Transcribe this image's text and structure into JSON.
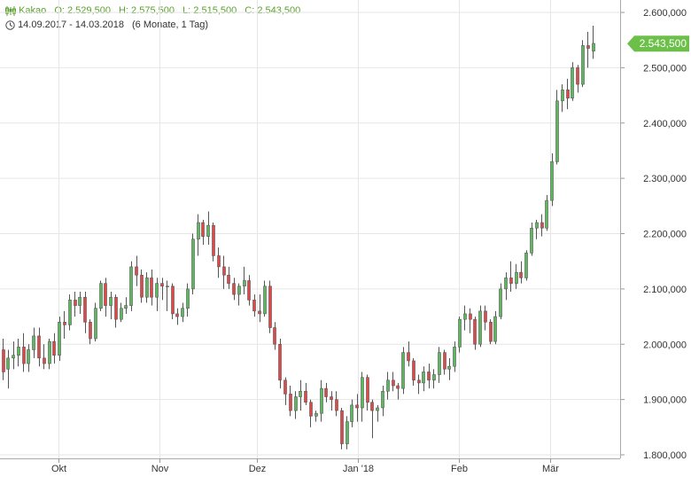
{
  "header": {
    "name": "Kakao",
    "open": "O: 2.529,500",
    "high": "H: 2.575,500",
    "low": "L: 2.515,500",
    "close": "C: 2.543,500",
    "range": "14.09.2017 - 14.03.2018",
    "period": "(6 Monate, 1 Tag)",
    "icon": "candlestick-icon",
    "clock_icon": "clock-icon"
  },
  "colors": {
    "up": "#5cb85c",
    "down": "#e04848",
    "wick": "#555555",
    "grid": "#e6e6e6",
    "label_bg": "#6cc04a",
    "header_text": "#5aa02c"
  },
  "chart_data": {
    "type": "candlestick",
    "y_ticks": [
      "1.800,000",
      "1.900,000",
      "2.000,000",
      "2.100,000",
      "2.200,000",
      "2.300,000",
      "2.400,000",
      "2.500,000",
      "2.600,000"
    ],
    "y_tick_values": [
      1800,
      1900,
      2000,
      2100,
      2200,
      2300,
      2400,
      2500,
      2600
    ],
    "ylim": [
      1775,
      2625
    ],
    "x_labels": [
      {
        "label": "Okt",
        "date": "2017-10-01"
      },
      {
        "label": "Nov",
        "date": "2017-11-01"
      },
      {
        "label": "Dez",
        "date": "2017-12-01"
      },
      {
        "label": "Jan '18",
        "date": "2018-01-01"
      },
      {
        "label": "Feb",
        "date": "2018-02-01"
      },
      {
        "label": "Mär",
        "date": "2018-03-01"
      }
    ],
    "last_value": 2543.5,
    "last_label": "2.543,500",
    "candles": [
      [
        1990,
        2010,
        1935,
        1950
      ],
      [
        1955,
        1990,
        1920,
        1975
      ],
      [
        1975,
        2005,
        1955,
        1980
      ],
      [
        1980,
        2010,
        1960,
        1995
      ],
      [
        1995,
        2020,
        1950,
        1965
      ],
      [
        1965,
        2000,
        1950,
        1990
      ],
      [
        1990,
        2030,
        1975,
        2015
      ],
      [
        2015,
        2030,
        1960,
        1975
      ],
      [
        1975,
        2000,
        1955,
        1965
      ],
      [
        1965,
        2010,
        1955,
        2005
      ],
      [
        2005,
        2020,
        1965,
        1980
      ],
      [
        1980,
        2050,
        1970,
        2040
      ],
      [
        2040,
        2060,
        2010,
        2035
      ],
      [
        2035,
        2090,
        2025,
        2080
      ],
      [
        2080,
        2095,
        2050,
        2070
      ],
      [
        2070,
        2095,
        2055,
        2085
      ],
      [
        2085,
        2095,
        2020,
        2040
      ],
      [
        2040,
        2045,
        2000,
        2010
      ],
      [
        2010,
        2075,
        2005,
        2065
      ],
      [
        2065,
        2115,
        2060,
        2110
      ],
      [
        2110,
        2120,
        2050,
        2070
      ],
      [
        2070,
        2095,
        2045,
        2085
      ],
      [
        2085,
        2090,
        2030,
        2045
      ],
      [
        2045,
        2075,
        2040,
        2065
      ],
      [
        2065,
        2085,
        2055,
        2070
      ],
      [
        2070,
        2150,
        2060,
        2140
      ],
      [
        2140,
        2160,
        2105,
        2125
      ],
      [
        2125,
        2135,
        2075,
        2085
      ],
      [
        2085,
        2130,
        2075,
        2120
      ],
      [
        2120,
        2135,
        2070,
        2085
      ],
      [
        2085,
        2120,
        2060,
        2110
      ],
      [
        2110,
        2120,
        2080,
        2105
      ],
      [
        2105,
        2115,
        2060,
        2105
      ],
      [
        2105,
        2110,
        2045,
        2055
      ],
      [
        2055,
        2065,
        2035,
        2050
      ],
      [
        2050,
        2075,
        2040,
        2065
      ],
      [
        2065,
        2110,
        2050,
        2100
      ],
      [
        2100,
        2200,
        2090,
        2190
      ],
      [
        2190,
        2235,
        2160,
        2220
      ],
      [
        2220,
        2225,
        2180,
        2195
      ],
      [
        2195,
        2240,
        2180,
        2215
      ],
      [
        2215,
        2220,
        2150,
        2160
      ],
      [
        2160,
        2175,
        2120,
        2140
      ],
      [
        2140,
        2160,
        2100,
        2125
      ],
      [
        2125,
        2140,
        2100,
        2110
      ],
      [
        2110,
        2120,
        2080,
        2090
      ],
      [
        2090,
        2110,
        2070,
        2105
      ],
      [
        2105,
        2140,
        2090,
        2115
      ],
      [
        2115,
        2125,
        2070,
        2080
      ],
      [
        2080,
        2090,
        2050,
        2060
      ],
      [
        2060,
        2090,
        2040,
        2055
      ],
      [
        2055,
        2115,
        2050,
        2105
      ],
      [
        2105,
        2115,
        2020,
        2030
      ],
      [
        2030,
        2040,
        1990,
        2000
      ],
      [
        2000,
        2010,
        1920,
        1935
      ],
      [
        1935,
        1940,
        1890,
        1910
      ],
      [
        1910,
        1925,
        1870,
        1880
      ],
      [
        1880,
        1915,
        1865,
        1905
      ],
      [
        1905,
        1935,
        1880,
        1915
      ],
      [
        1915,
        1930,
        1890,
        1895
      ],
      [
        1895,
        1900,
        1850,
        1870
      ],
      [
        1870,
        1880,
        1860,
        1875
      ],
      [
        1875,
        1935,
        1860,
        1920
      ],
      [
        1920,
        1930,
        1895,
        1905
      ],
      [
        1905,
        1915,
        1880,
        1900
      ],
      [
        1900,
        1915,
        1870,
        1880
      ],
      [
        1880,
        1885,
        1810,
        1820
      ],
      [
        1820,
        1870,
        1810,
        1860
      ],
      [
        1860,
        1900,
        1850,
        1890
      ],
      [
        1890,
        1910,
        1860,
        1885
      ],
      [
        1885,
        1950,
        1860,
        1940
      ],
      [
        1940,
        1945,
        1880,
        1895
      ],
      [
        1895,
        1900,
        1830,
        1880
      ],
      [
        1880,
        1890,
        1860,
        1885
      ],
      [
        1885,
        1925,
        1870,
        1915
      ],
      [
        1915,
        1950,
        1900,
        1935
      ],
      [
        1935,
        1950,
        1915,
        1925
      ],
      [
        1925,
        1930,
        1900,
        1920
      ],
      [
        1920,
        1995,
        1910,
        1985
      ],
      [
        1985,
        2005,
        1960,
        1970
      ],
      [
        1970,
        1975,
        1925,
        1935
      ],
      [
        1935,
        1945,
        1910,
        1930
      ],
      [
        1930,
        1960,
        1915,
        1950
      ],
      [
        1950,
        1965,
        1920,
        1935
      ],
      [
        1935,
        1955,
        1920,
        1945
      ],
      [
        1945,
        1995,
        1930,
        1985
      ],
      [
        1985,
        1990,
        1945,
        1955
      ],
      [
        1955,
        1975,
        1935,
        1960
      ],
      [
        1960,
        2005,
        1950,
        1995
      ],
      [
        1995,
        2050,
        1985,
        2045
      ],
      [
        2045,
        2070,
        2025,
        2055
      ],
      [
        2055,
        2065,
        2020,
        2045
      ],
      [
        2045,
        2050,
        1990,
        2000
      ],
      [
        2000,
        2070,
        1995,
        2060
      ],
      [
        2060,
        2070,
        2025,
        2040
      ],
      [
        2040,
        2045,
        2000,
        2005
      ],
      [
        2005,
        2060,
        2000,
        2050
      ],
      [
        2050,
        2110,
        2045,
        2100
      ],
      [
        2100,
        2130,
        2080,
        2120
      ],
      [
        2120,
        2150,
        2095,
        2110
      ],
      [
        2110,
        2145,
        2100,
        2130
      ],
      [
        2130,
        2150,
        2110,
        2120
      ],
      [
        2120,
        2170,
        2115,
        2165
      ],
      [
        2165,
        2220,
        2160,
        2210
      ],
      [
        2210,
        2225,
        2190,
        2220
      ],
      [
        2220,
        2235,
        2195,
        2210
      ],
      [
        2210,
        2270,
        2205,
        2260
      ],
      [
        2260,
        2345,
        2250,
        2330
      ],
      [
        2330,
        2460,
        2325,
        2440
      ],
      [
        2440,
        2470,
        2420,
        2460
      ],
      [
        2460,
        2480,
        2425,
        2445
      ],
      [
        2445,
        2510,
        2440,
        2500
      ],
      [
        2500,
        2505,
        2455,
        2470
      ],
      [
        2470,
        2550,
        2465,
        2540
      ],
      [
        2540,
        2565,
        2500,
        2535
      ],
      [
        2530,
        2576,
        2516,
        2544
      ]
    ]
  }
}
